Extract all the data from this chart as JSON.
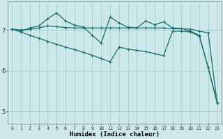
{
  "xlabel": "Humidex (Indice chaleur)",
  "x_ticks": [
    0,
    1,
    2,
    3,
    4,
    5,
    6,
    7,
    8,
    9,
    10,
    11,
    12,
    13,
    14,
    15,
    16,
    17,
    18,
    19,
    20,
    21,
    22,
    23
  ],
  "ylim": [
    4.7,
    7.7
  ],
  "yticks": [
    5,
    6,
    7
  ],
  "background_color": "#cce8e8",
  "grid_color": "#aacccc",
  "line_color": "#1a6b6b",
  "line1_y": [
    7.02,
    7.0,
    7.02,
    7.05,
    7.1,
    7.08,
    7.06,
    7.05,
    7.05,
    7.05,
    7.05,
    7.05,
    7.05,
    7.05,
    7.05,
    7.05,
    7.05,
    7.05,
    7.03,
    7.03,
    7.02,
    6.97,
    6.93,
    5.22
  ],
  "line2_y": [
    7.02,
    6.97,
    7.05,
    7.1,
    7.28,
    7.42,
    7.22,
    7.12,
    7.07,
    6.87,
    6.68,
    7.32,
    7.17,
    7.07,
    7.05,
    7.22,
    7.13,
    7.2,
    7.05,
    7.04,
    6.97,
    6.87,
    6.08,
    5.22
  ],
  "line3_y": [
    7.02,
    6.95,
    6.87,
    6.8,
    6.72,
    6.65,
    6.58,
    6.52,
    6.45,
    6.38,
    6.3,
    6.22,
    6.58,
    6.53,
    6.5,
    6.47,
    6.42,
    6.37,
    6.97,
    6.97,
    6.95,
    6.85,
    6.08,
    5.22
  ]
}
